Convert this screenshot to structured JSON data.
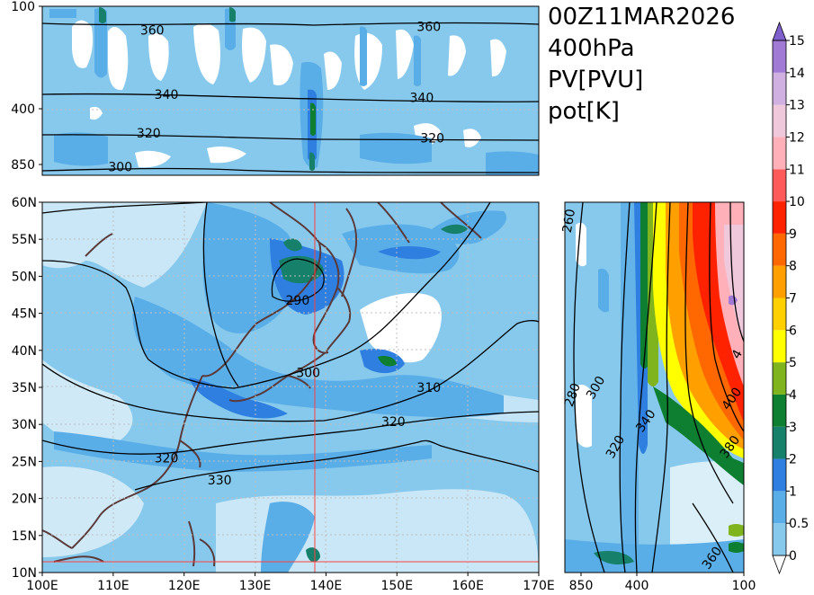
{
  "chart_data": {
    "type": "heatmap",
    "valid_time": "00Z11MAR2026",
    "level": "400hPa",
    "shaded_field": "PV[PVU]",
    "contour_field": "pot[K]",
    "colorbar": {
      "ticks": [
        "0",
        "0.5",
        "1",
        "2",
        "3",
        "4",
        "5",
        "6",
        "7",
        "8",
        "9",
        "10",
        "11",
        "12",
        "13",
        "14",
        "15"
      ],
      "colors": [
        "#87c9ec",
        "#5aaee8",
        "#2e7fe0",
        "#17806b",
        "#0e7f30",
        "#7fb41e",
        "#ffff00",
        "#ffd000",
        "#ffa000",
        "#ff6800",
        "#ff2200",
        "#ff5a5a",
        "#ffb0b8",
        "#f0c8dc",
        "#d0b0e0",
        "#a07ad4",
        "#8060cc"
      ]
    },
    "main_map": {
      "lon_ticks": [
        "100E",
        "110E",
        "120E",
        "130E",
        "140E",
        "150E",
        "160E",
        "170E"
      ],
      "lat_ticks": [
        "10N",
        "15N",
        "20N",
        "25N",
        "30N",
        "35N",
        "40N",
        "45N",
        "50N",
        "55N",
        "60N"
      ],
      "lon_range": [
        100,
        170
      ],
      "lat_range": [
        10,
        60
      ],
      "cross_section_lon": 138.5,
      "cross_section_lat": 11.5,
      "theta_labels": [
        {
          "text": "290",
          "lon": 136.0,
          "lat": 46.8
        },
        {
          "text": "300",
          "lon": 137.5,
          "lat": 37.0
        },
        {
          "text": "310",
          "lon": 154.5,
          "lat": 35.0
        },
        {
          "text": "320",
          "lon": 149.5,
          "lat": 30.4
        },
        {
          "text": "320",
          "lon": 117.5,
          "lat": 25.5
        },
        {
          "text": "330",
          "lon": 125.0,
          "lat": 22.5
        }
      ]
    },
    "top_panel": {
      "pressure_ticks": [
        "100",
        "400",
        "850"
      ],
      "theta_labels": [
        {
          "text": "360",
          "lon": 115.5,
          "p": 0.14
        },
        {
          "text": "360",
          "lon": 154.5,
          "p": 0.12
        },
        {
          "text": "340",
          "lon": 117.5,
          "p": 0.52
        },
        {
          "text": "340",
          "lon": 153.5,
          "p": 0.54
        },
        {
          "text": "320",
          "lon": 115.0,
          "p": 0.75
        },
        {
          "text": "320",
          "lon": 155.0,
          "p": 0.78
        },
        {
          "text": "300",
          "lon": 111.0,
          "p": 0.95
        }
      ]
    },
    "side_panel": {
      "pressure_ticks": [
        "850",
        "400",
        "100"
      ],
      "theta_labels": [
        {
          "text": "260",
          "p": 0.98,
          "lat": 57.5
        },
        {
          "text": "280",
          "p": 0.96,
          "lat": 34.0
        },
        {
          "text": "300",
          "p": 0.83,
          "lat": 35.0
        },
        {
          "text": "320",
          "p": 0.72,
          "lat": 27.0
        },
        {
          "text": "340",
          "p": 0.55,
          "lat": 30.5
        },
        {
          "text": "400",
          "p": 0.07,
          "lat": 33.5
        },
        {
          "text": "380",
          "p": 0.08,
          "lat": 27.0
        },
        {
          "text": "360",
          "p": 0.18,
          "lat": 12.0
        },
        {
          "text": "4",
          "p": 0.04,
          "lat": 39.5
        }
      ]
    }
  }
}
